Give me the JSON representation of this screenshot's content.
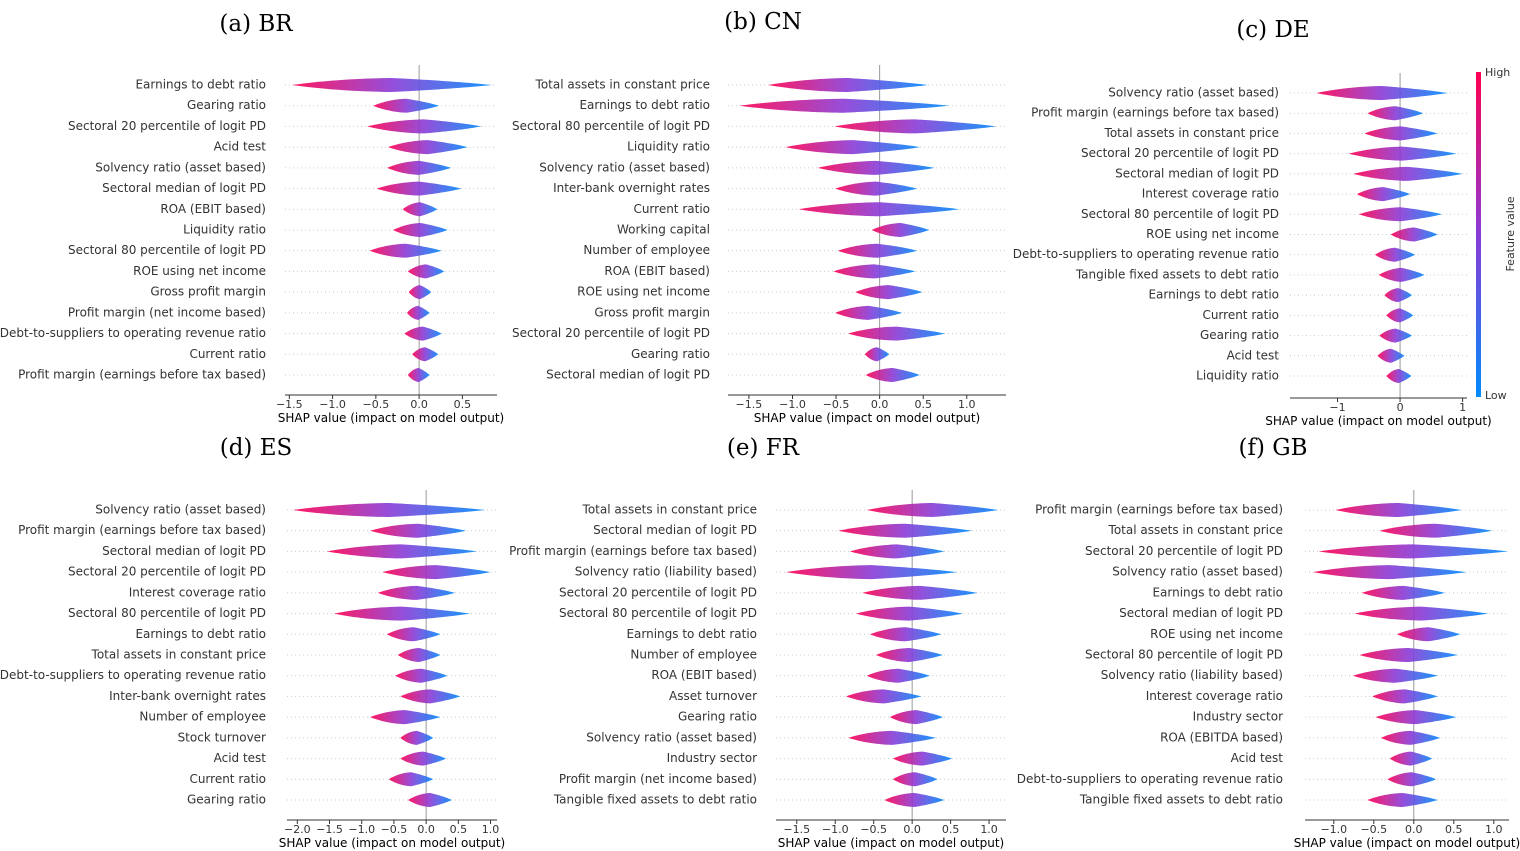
{
  "chart_data": [
    {
      "type": "beeswarm",
      "title": "(a) BR",
      "xlabel": "SHAP value (impact on model output)",
      "colors": {
        "high": "#ff0052",
        "mid": "#8a3bd6",
        "low": "#008bfb"
      },
      "xlim": [
        -1.55,
        0.9
      ],
      "xticks": [
        {
          "value": -1.5,
          "label": "−1.5"
        },
        {
          "value": -1,
          "label": "−1.0"
        },
        {
          "value": -0.5,
          "label": "−0.5"
        },
        {
          "value": 0,
          "label": "0.0"
        },
        0.5
      ],
      "categories": [
        "Earnings to debt ratio",
        "Gearing ratio",
        "Sectoral 20 percentile of logit PD",
        "Acid test",
        "Solvency ratio (asset based)",
        "Sectoral median of logit PD",
        "ROA (EBIT based)",
        "Liquidity ratio",
        "Sectoral 80 percentile of logit PD",
        "ROE using net income",
        "Gross profit margin",
        "Profit margin (net income based)",
        "Debt-to-suppliers to operating revenue ratio",
        "Current ratio",
        "Profit margin (earnings before tax based)"
      ],
      "min": [
        -1.47,
        -0.53,
        -0.6,
        -0.36,
        -0.37,
        -0.49,
        -0.19,
        -0.3,
        -0.57,
        -0.13,
        -0.12,
        -0.14,
        -0.17,
        -0.08,
        -0.13
      ],
      "max": [
        0.84,
        0.23,
        0.72,
        0.56,
        0.37,
        0.49,
        0.21,
        0.33,
        0.26,
        0.29,
        0.14,
        0.12,
        0.26,
        0.22,
        0.12
      ]
    },
    {
      "type": "beeswarm",
      "title": "(b) CN",
      "xlabel": "SHAP value (impact on model output)",
      "colors": {
        "high": "#ff0052",
        "mid": "#8a3bd6",
        "low": "#008bfb"
      },
      "xlim": [
        -1.74,
        1.45
      ],
      "xticks": [
        {
          "value": -1.5,
          "label": "−1.5"
        },
        {
          "value": -1,
          "label": "−1.0"
        },
        {
          "value": -0.5,
          "label": "−0.5"
        },
        {
          "value": 0,
          "label": "0.0"
        },
        0.5,
        {
          "value": 1,
          "label": "1.0"
        }
      ],
      "categories": [
        "Total assets in constant price",
        "Earnings to debt ratio",
        "Sectoral 80 percentile of logit PD",
        "Liquidity ratio",
        "Solvency ratio (asset based)",
        "Inter-bank overnight rates",
        "Current ratio",
        "Working capital",
        "Number of employee",
        "ROA (EBIT based)",
        "ROE using net income",
        "Gross profit margin",
        "Sectoral 20 percentile of logit PD",
        "Gearing ratio",
        "Sectoral median of logit PD"
      ],
      "min": [
        -1.28,
        -1.61,
        -0.52,
        -1.08,
        -0.71,
        -0.51,
        -0.93,
        -0.09,
        -0.48,
        -0.53,
        -0.28,
        -0.51,
        -0.36,
        -0.17,
        -0.16
      ],
      "max": [
        0.55,
        0.8,
        1.34,
        0.47,
        0.63,
        0.43,
        0.92,
        0.57,
        0.43,
        0.41,
        0.49,
        0.26,
        0.75,
        0.11,
        0.46
      ]
    },
    {
      "type": "beeswarm",
      "title": "(c) DE",
      "xlabel": "SHAP value (impact on model output)",
      "colors": {
        "high": "#ff0052",
        "mid": "#8a3bd6",
        "low": "#008bfb"
      },
      "colorbar": {
        "label": "Feature value",
        "high": "High",
        "low": "Low"
      },
      "xlim": [
        -1.76,
        1.07
      ],
      "xticks": [
        {
          "value": -1,
          "label": "−1"
        },
        0,
        1
      ],
      "categories": [
        "Solvency ratio (asset based)",
        "Profit margin (earnings before tax based)",
        "Total assets in constant price",
        "Sectoral 20 percentile of logit PD",
        "Sectoral median of logit PD",
        "Interest coverage ratio",
        "Sectoral 80 percentile of logit PD",
        "ROE using net income",
        "Debt-to-suppliers to operating revenue ratio",
        "Tangible fixed assets to debt ratio",
        "Earnings to debt ratio",
        "Current ratio",
        "Gearing ratio",
        "Acid test",
        "Liquidity ratio"
      ],
      "min": [
        -1.34,
        -0.52,
        -0.57,
        -0.82,
        -0.75,
        -0.69,
        -0.66,
        -0.15,
        -0.4,
        -0.34,
        -0.25,
        -0.22,
        -0.33,
        -0.36,
        -0.22
      ],
      "max": [
        0.76,
        0.37,
        0.6,
        0.9,
        1.0,
        0.16,
        0.67,
        0.6,
        0.24,
        0.39,
        0.19,
        0.21,
        0.19,
        0.07,
        0.18
      ]
    },
    {
      "type": "beeswarm",
      "title": "(d) ES",
      "xlabel": "SHAP value (impact on model output)",
      "colors": {
        "high": "#ff0052",
        "mid": "#8a3bd6",
        "low": "#008bfb"
      },
      "xlim": [
        -2.16,
        1.1
      ],
      "xticks": [
        {
          "value": -2,
          "label": "−2.0"
        },
        {
          "value": -1.5,
          "label": "−1.5"
        },
        {
          "value": -1,
          "label": "−1.0"
        },
        {
          "value": -0.5,
          "label": "−0.5"
        },
        {
          "value": 0,
          "label": "0.0"
        },
        0.5,
        {
          "value": 1,
          "label": "1.0"
        }
      ],
      "categories": [
        "Solvency ratio (asset based)",
        "Profit margin (earnings before tax based)",
        "Sectoral median of logit PD",
        "Sectoral 20 percentile of logit PD",
        "Interest coverage ratio",
        "Sectoral 80 percentile of logit PD",
        "Earnings to debt ratio",
        "Total assets in constant price",
        "Debt-to-suppliers to operating revenue ratio",
        "Inter-bank overnight rates",
        "Number of employee",
        "Stock turnover",
        "Acid test",
        "Current ratio",
        "Gearing ratio"
      ],
      "min": [
        -2.07,
        -0.87,
        -1.54,
        -0.68,
        -0.75,
        -1.43,
        -0.61,
        -0.44,
        -0.48,
        -0.4,
        -0.87,
        -0.4,
        -0.4,
        -0.58,
        -0.28
      ],
      "max": [
        0.92,
        0.62,
        0.79,
        1.0,
        0.45,
        0.68,
        0.22,
        0.22,
        0.33,
        0.53,
        0.22,
        0.11,
        0.31,
        0.11,
        0.4
      ]
    },
    {
      "type": "beeswarm",
      "title": "(e) FR",
      "xlabel": "SHAP value (impact on model output)",
      "colors": {
        "high": "#ff0052",
        "mid": "#8a3bd6",
        "low": "#008bfb"
      },
      "xlim": [
        -1.77,
        1.22
      ],
      "xticks": [
        {
          "value": -1.5,
          "label": "−1.5"
        },
        {
          "value": -1,
          "label": "−1.0"
        },
        {
          "value": -0.5,
          "label": "−0.5"
        },
        {
          "value": 0,
          "label": "0.0"
        },
        0.5,
        {
          "value": 1,
          "label": "1.0"
        }
      ],
      "categories": [
        "Total assets in constant price",
        "Sectoral median of logit PD",
        "Profit margin (earnings before tax based)",
        "Solvency ratio (liability based)",
        "Sectoral 20 percentile of logit PD",
        "Sectoral 80 percentile of logit PD",
        "Earnings to debt ratio",
        "Number of employee",
        "ROA (EBIT based)",
        "Asset turnover",
        "Gearing ratio",
        "Solvency ratio (asset based)",
        "Industry sector",
        "Profit margin (net income based)",
        "Tangible fixed assets to debt ratio"
      ],
      "min": [
        -0.59,
        -0.96,
        -0.81,
        -1.64,
        -0.65,
        -0.73,
        -0.55,
        -0.47,
        -0.59,
        -0.86,
        -0.29,
        -0.83,
        -0.25,
        -0.25,
        -0.36
      ],
      "max": [
        1.12,
        0.78,
        0.42,
        0.59,
        0.85,
        0.66,
        0.38,
        0.4,
        0.23,
        0.12,
        0.4,
        0.31,
        0.52,
        0.33,
        0.42
      ]
    },
    {
      "type": "beeswarm",
      "title": "(f) GB",
      "xlabel": "SHAP value (impact on model output)",
      "colors": {
        "high": "#ff0052",
        "mid": "#8a3bd6",
        "low": "#008bfb"
      },
      "xlim": [
        -1.36,
        1.19
      ],
      "xticks": [
        {
          "value": -1,
          "label": "−1.0"
        },
        {
          "value": -0.5,
          "label": "−0.5"
        },
        {
          "value": 0,
          "label": "0.0"
        },
        0.5,
        {
          "value": 1,
          "label": "1.0"
        }
      ],
      "categories": [
        "Profit margin (earnings before tax based)",
        "Total assets in constant price",
        "Sectoral 20 percentile of logit PD",
        "Solvency ratio (asset based)",
        "Earnings to debt ratio",
        "Sectoral median of logit PD",
        "ROE using net income",
        "Sectoral 80 percentile of logit PD",
        "Solvency ratio (liability based)",
        "Interest coverage ratio",
        "Industry sector",
        "ROA (EBITDA based)",
        "Acid test",
        "Debt-to-suppliers to operating revenue ratio",
        "Tangible fixed assets to debt ratio"
      ],
      "min": [
        -0.98,
        -0.43,
        -1.19,
        -1.26,
        -0.65,
        -0.74,
        -0.21,
        -0.68,
        -0.76,
        -0.52,
        -0.48,
        -0.41,
        -0.3,
        -0.33,
        -0.58
      ],
      "max": [
        0.6,
        0.98,
        1.18,
        0.66,
        0.39,
        0.93,
        0.58,
        0.55,
        0.3,
        0.3,
        0.53,
        0.33,
        0.23,
        0.28,
        0.3
      ]
    }
  ]
}
